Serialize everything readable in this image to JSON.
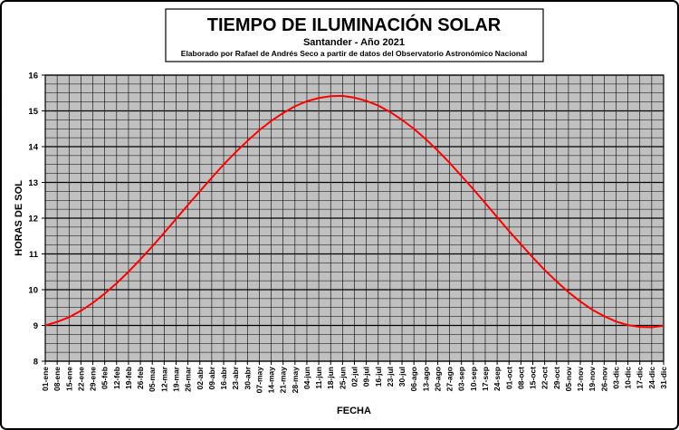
{
  "chart_data": {
    "type": "line",
    "title": "TIEMPO DE ILUMINACIÓN SOLAR",
    "subtitle": "Santander - Año 2021",
    "credit": "Elaborado por Rafael de Andrés Seco a partir de datos del Observatorio Astronómico Nacional",
    "x_label": "FECHA",
    "y_label": "HORAS DE SOL",
    "categories": [
      "01-ene",
      "08-ene",
      "15-ene",
      "22-ene",
      "29-ene",
      "05-feb",
      "12-feb",
      "19-feb",
      "26-feb",
      "05-mar",
      "12-mar",
      "19-mar",
      "26-mar",
      "02-abr",
      "09-abr",
      "16-abr",
      "23-abr",
      "30-abr",
      "07-may",
      "14-may",
      "21-may",
      "28-may",
      "04-jun",
      "11-jun",
      "18-jun",
      "25-jun",
      "02-jul",
      "09-jul",
      "16-jul",
      "23-jul",
      "30-jul",
      "06-ago",
      "13-ago",
      "20-ago",
      "27-ago",
      "03-sep",
      "10-sep",
      "17-sep",
      "24-sep",
      "01-oct",
      "08-oct",
      "15-oct",
      "22-oct",
      "29-oct",
      "05-nov",
      "12-nov",
      "19-nov",
      "26-nov",
      "03-dic",
      "10-dic",
      "17-dic",
      "24-dic",
      "31-dic"
    ],
    "series": [
      {
        "name": "Horas de sol",
        "color": "#ff0000",
        "values": [
          9.0,
          9.1,
          9.23,
          9.41,
          9.63,
          9.89,
          10.18,
          10.5,
          10.85,
          11.21,
          11.59,
          11.98,
          12.37,
          12.75,
          13.13,
          13.5,
          13.84,
          14.16,
          14.46,
          14.72,
          14.94,
          15.13,
          15.27,
          15.36,
          15.41,
          15.42,
          15.37,
          15.28,
          15.15,
          14.97,
          14.75,
          14.5,
          14.21,
          13.89,
          13.55,
          13.18,
          12.81,
          12.42,
          12.03,
          11.64,
          11.27,
          10.9,
          10.55,
          10.23,
          9.93,
          9.67,
          9.44,
          9.26,
          9.11,
          9.01,
          8.96,
          8.95,
          8.99
        ]
      }
    ],
    "ylim": [
      8,
      16
    ],
    "yticks": [
      8,
      9,
      10,
      11,
      12,
      13,
      14,
      15,
      16
    ],
    "grid": true,
    "plot_background": "#c0c0c0"
  }
}
